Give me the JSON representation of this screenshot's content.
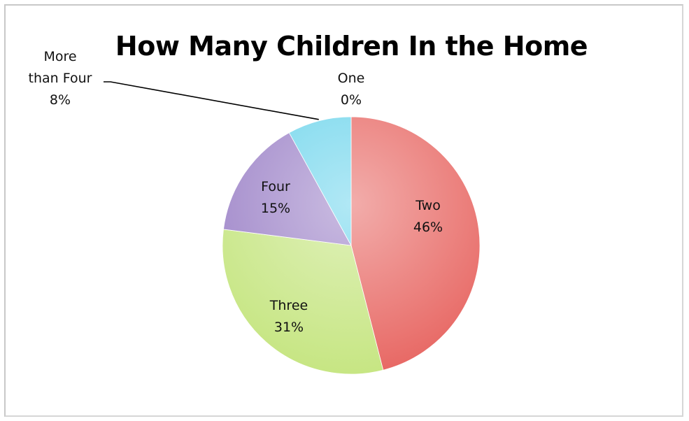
{
  "chart_data": {
    "type": "pie",
    "title": "How Many Children In the Home",
    "slices": [
      {
        "label": "One",
        "value": 0,
        "pct_label": "0%",
        "color": "#5fd3ee"
      },
      {
        "label": "Two",
        "value": 46,
        "pct_label": "46%",
        "color": "#e86a66"
      },
      {
        "label": "Three",
        "value": 31,
        "pct_label": "31%",
        "color": "#c7e684"
      },
      {
        "label": "Four",
        "value": 15,
        "pct_label": "15%",
        "color": "#9f86c9"
      },
      {
        "label": "More than Four",
        "value": 8,
        "pct_label": "8%",
        "color": "#72d6ec"
      }
    ],
    "legend": "none",
    "grid": false
  }
}
